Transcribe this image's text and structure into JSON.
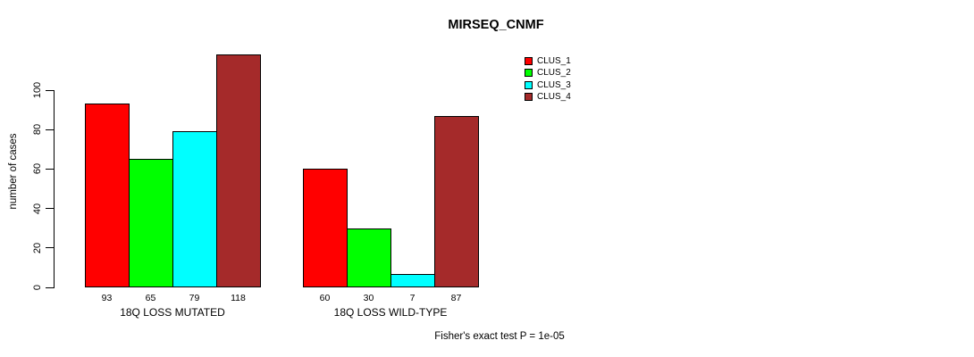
{
  "chart_data": {
    "type": "bar",
    "title": "MIRSEQ_CNMF",
    "ylabel": "number of cases",
    "xlabel": "",
    "ylim": [
      0,
      100
    ],
    "yticks": [
      0,
      20,
      40,
      60,
      80,
      100
    ],
    "grid": false,
    "legend_position": "top-right",
    "categories": [
      "18Q LOSS MUTATED",
      "18Q LOSS WILD-TYPE"
    ],
    "series": [
      {
        "name": "CLUS_1",
        "color": "#ff0000",
        "values": [
          93,
          60
        ]
      },
      {
        "name": "CLUS_2",
        "color": "#00ff00",
        "values": [
          65,
          30
        ]
      },
      {
        "name": "CLUS_3",
        "color": "#00ffff",
        "values": [
          79,
          7
        ]
      },
      {
        "name": "CLUS_4",
        "color": "#a52a2a",
        "values": [
          118,
          87
        ]
      }
    ],
    "bar_value_labels": [
      [
        93,
        65,
        79,
        118
      ],
      [
        60,
        30,
        7,
        87
      ]
    ],
    "footnote": "Fisher's exact test P = 1e-05",
    "colors": {
      "axis": "#000000",
      "text": "#000000",
      "background": "#ffffff"
    }
  }
}
